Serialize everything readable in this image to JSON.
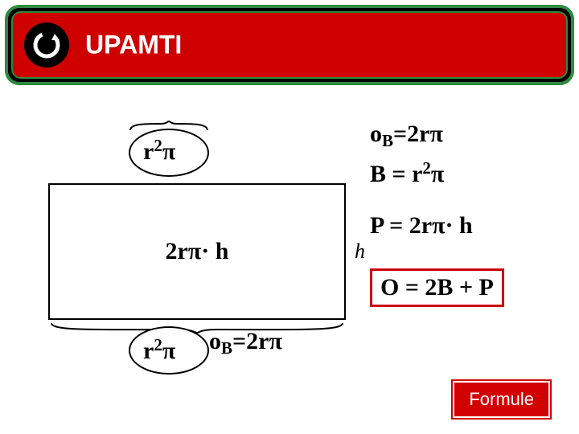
{
  "colors": {
    "red": "#ce0000",
    "green_border": "#2d8a3e",
    "black": "#000000",
    "white": "#ffffff"
  },
  "header": {
    "title": "UPAMTI"
  },
  "diagram": {
    "top_ellipse_label_html": "r<sup>2</sup><span class='pi'>π</span>",
    "bottom_ellipse_label_html": "r<sup>2</sup><span class='pi'>π</span>",
    "rect_label_html": "2r<span class='pi'>π</span>· h",
    "h_label": "h",
    "ob_bottom_html": "o<sub>B</sub>=2r<span class='pi'>π</span>"
  },
  "formulas": {
    "line1_html": "o<sub>B</sub>=2r<span class='pi'>π</span>",
    "line2_html": "B = r<sup>2</sup><span class='pi'>π</span>",
    "line3_html": "P = 2r<span class='pi'>π</span>· h",
    "box_html": "O = 2B + P"
  },
  "button": {
    "label": "Formule"
  }
}
